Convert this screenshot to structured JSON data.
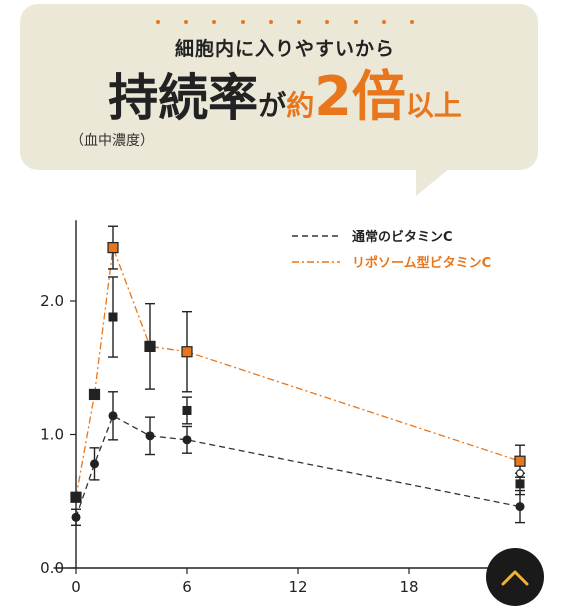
{
  "header": {
    "subtitle": "細胞内に入りやすいから",
    "headline_a": "持続率",
    "headline_b": "が",
    "headline_c": "約",
    "headline_d": "2倍",
    "headline_e": "以上",
    "note": "（血中濃度）"
  },
  "colors": {
    "accent": "#e8761c",
    "bubble": "#ebe8d8",
    "series_normal": "#333333",
    "series_lipo": "#e8761c"
  },
  "icons": {
    "scroll_top": "chevron-up-icon"
  },
  "chart_data": {
    "type": "line",
    "title": "",
    "xlabel": "",
    "ylabel": "",
    "xlim": [
      -1,
      23.5
    ],
    "ylim": [
      0,
      2.5
    ],
    "xticks": [
      0,
      6,
      12,
      18
    ],
    "xtick_labels": [
      "0",
      "6",
      "12",
      "18"
    ],
    "yticks": [
      0,
      1,
      2
    ],
    "ytick_labels": [
      "0.0",
      "1.0",
      "2.0"
    ],
    "grid": false,
    "legend_position": "top-right",
    "series": [
      {
        "name": "通常のビタミンC",
        "style": "dashed",
        "marker": "circle",
        "color": "#333333",
        "x": [
          0,
          1,
          2,
          4,
          6,
          24
        ],
        "y": [
          0.38,
          0.78,
          1.14,
          0.99,
          0.96,
          0.46
        ],
        "err": [
          0.06,
          0.12,
          0.18,
          0.14,
          0.1,
          0.12
        ]
      },
      {
        "name": "リポソーム型ビタミンC",
        "style": "dashdot",
        "marker": "square",
        "color": "#e8761c",
        "x": [
          0,
          1,
          2,
          4,
          6,
          24
        ],
        "y": [
          0.53,
          1.3,
          2.4,
          1.66,
          1.62,
          0.8
        ],
        "err": [
          0.0,
          0.0,
          0.16,
          0.32,
          0.3,
          0.12
        ]
      }
    ],
    "extra_markers": [
      {
        "x": 2,
        "y": 1.88,
        "err": 0.3
      },
      {
        "x": 6,
        "y": 1.18,
        "err": 0.1
      },
      {
        "x": 24,
        "y": 0.63,
        "err": 0.08
      }
    ],
    "hollow_markers": [
      {
        "x": 24,
        "y": 0.71
      }
    ]
  }
}
